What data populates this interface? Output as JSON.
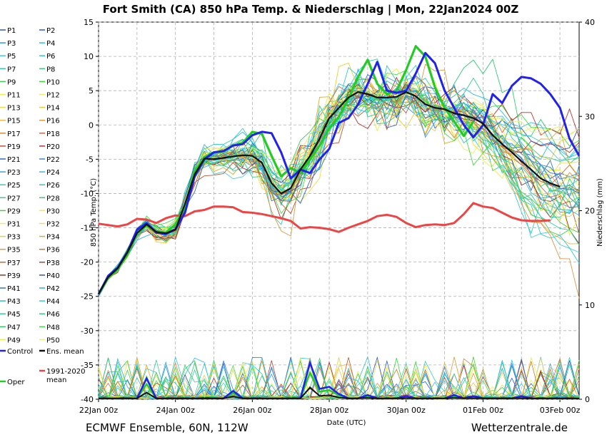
{
  "title": "Fort Smith  (CA)  850 hPa Temp. & Niederschlag | Mon, 22Jan2024 00Z",
  "footer_left": "ECMWF Ensemble, 60N, 112W",
  "footer_right": "Wetterzentrale.de",
  "colors": {
    "control": "#2222ee",
    "oper": "#22cc22",
    "mean": "#111111",
    "climate": "#ee4444",
    "grid": "#b0b0b0"
  },
  "chart_data": {
    "type": "line",
    "xlabel": "Date (UTC)",
    "ylabel": "850 hPa Temp. (°C)",
    "ylabel_right": "Niederschlag (mm)",
    "ylim": [
      -40,
      15
    ],
    "ylim_right": [
      0,
      40
    ],
    "yticks": [
      "15",
      "10",
      "5",
      "0",
      "-5",
      "-10",
      "-15",
      "-20",
      "-25",
      "-30",
      "-35",
      "-40"
    ],
    "yticks_right": [
      "40",
      "30",
      "20",
      "10",
      "0"
    ],
    "xticks": [
      "22Jan 00z",
      "24Jan 00z",
      "26Jan 00z",
      "28Jan 00z",
      "30Jan 00z",
      "01Feb 00z",
      "03Feb 00z"
    ],
    "x_days": 12.5,
    "grid": true,
    "legend": [
      {
        "label": "P1",
        "color": "#3355cc"
      },
      {
        "label": "P2",
        "color": "#2255ff"
      },
      {
        "label": "P3",
        "color": "#3399dd"
      },
      {
        "label": "P4",
        "color": "#33bbee"
      },
      {
        "label": "P5",
        "color": "#44ccdd"
      },
      {
        "label": "P6",
        "color": "#33cccc"
      },
      {
        "label": "P7",
        "color": "#33ccaa"
      },
      {
        "label": "P8",
        "color": "#33cc88"
      },
      {
        "label": "P9",
        "color": "#44cc55"
      },
      {
        "label": "P10",
        "color": "#33dd33"
      },
      {
        "label": "P11",
        "color": "#eeee44"
      },
      {
        "label": "P12",
        "color": "#eeee66"
      },
      {
        "label": "P13",
        "color": "#eedd44"
      },
      {
        "label": "P14",
        "color": "#eecc33"
      },
      {
        "label": "P15",
        "color": "#eebb44"
      },
      {
        "label": "P16",
        "color": "#dd9933"
      },
      {
        "label": "P17",
        "color": "#dd8844"
      },
      {
        "label": "P18",
        "color": "#cc6644"
      },
      {
        "label": "P19",
        "color": "#bb5533"
      },
      {
        "label": "P20",
        "color": "#bb3333"
      },
      {
        "label": "P21",
        "color": "#3366cc"
      },
      {
        "label": "P22",
        "color": "#3388dd"
      },
      {
        "label": "P23",
        "color": "#33aadd"
      },
      {
        "label": "P24",
        "color": "#33bbee"
      },
      {
        "label": "P25",
        "color": "#33cccc"
      },
      {
        "label": "P26",
        "color": "#33ccbb"
      },
      {
        "label": "P27",
        "color": "#33cc99"
      },
      {
        "label": "P28",
        "color": "#33cc77"
      },
      {
        "label": "P29",
        "color": "#44cc44"
      },
      {
        "label": "P30",
        "color": "#eeee33"
      },
      {
        "label": "P31",
        "color": "#eeee55"
      },
      {
        "label": "P32",
        "color": "#eedd66"
      },
      {
        "label": "P33",
        "color": "#eecc44"
      },
      {
        "label": "P34",
        "color": "#ddaa33"
      },
      {
        "label": "P35",
        "color": "#dd9944"
      },
      {
        "label": "P36",
        "color": "#cc7733"
      },
      {
        "label": "P37",
        "color": "#cc6633"
      },
      {
        "label": "P38",
        "color": "#aa4433"
      },
      {
        "label": "P39",
        "color": "#993322"
      },
      {
        "label": "P40",
        "color": "#3355bb"
      },
      {
        "label": "P41",
        "color": "#3377cc"
      },
      {
        "label": "P42",
        "color": "#33aaee"
      },
      {
        "label": "P43",
        "color": "#33bbcc"
      },
      {
        "label": "P44",
        "color": "#33ccdd"
      },
      {
        "label": "P45",
        "color": "#33ccaa"
      },
      {
        "label": "P46",
        "color": "#33cc88"
      },
      {
        "label": "P47",
        "color": "#33cc66"
      },
      {
        "label": "P48",
        "color": "#44dd44"
      },
      {
        "label": "P49",
        "color": "#eeee44"
      },
      {
        "label": "P50",
        "color": "#eeee88"
      },
      {
        "label": "Control",
        "color": "#2222ee"
      },
      {
        "label": "Ens. mean",
        "color": "#111111"
      },
      {
        "label": "1991-2020\nmean",
        "color": "#ee4444"
      },
      {
        "label": "Oper",
        "color": "#22cc22"
      }
    ],
    "series": {
      "control": [
        [
          0,
          -24.7
        ],
        [
          0.25,
          -22
        ],
        [
          0.5,
          -20.8
        ],
        [
          0.75,
          -18.5
        ],
        [
          1,
          -15.3
        ],
        [
          1.25,
          -14.3
        ],
        [
          1.5,
          -15.7
        ],
        [
          1.75,
          -15.9
        ],
        [
          2,
          -15.2
        ],
        [
          2.25,
          -12.8
        ],
        [
          2.5,
          -7.5
        ],
        [
          2.75,
          -5
        ],
        [
          3,
          -4
        ],
        [
          3.25,
          -3.8
        ],
        [
          3.5,
          -3
        ],
        [
          3.75,
          -2.8
        ],
        [
          4,
          -1.5
        ],
        [
          4.25,
          -1
        ],
        [
          4.5,
          -1.2
        ],
        [
          4.75,
          -4
        ],
        [
          5,
          -7.8
        ],
        [
          5.25,
          -6.5
        ],
        [
          5.5,
          -7
        ],
        [
          5.75,
          -5
        ],
        [
          6,
          -3.5
        ],
        [
          6.25,
          0.3
        ],
        [
          6.5,
          1
        ],
        [
          6.75,
          3
        ],
        [
          7,
          6
        ],
        [
          7.25,
          9.2
        ],
        [
          7.5,
          5
        ],
        [
          7.75,
          4.7
        ],
        [
          8,
          5
        ],
        [
          8.25,
          7.5
        ],
        [
          8.5,
          10.5
        ],
        [
          8.75,
          9
        ],
        [
          9,
          5
        ],
        [
          9.25,
          2.5
        ],
        [
          9.5,
          0
        ],
        [
          9.75,
          -1.8
        ],
        [
          10,
          0
        ],
        [
          10.25,
          4.5
        ],
        [
          10.5,
          3.2
        ],
        [
          10.75,
          5.7
        ],
        [
          11,
          7
        ],
        [
          11.25,
          6.8
        ],
        [
          11.5,
          6
        ],
        [
          11.75,
          4.5
        ],
        [
          12,
          2.5
        ],
        [
          12.25,
          -2
        ],
        [
          12.5,
          -4.5
        ]
      ],
      "oper": [
        [
          0,
          -24.8
        ],
        [
          0.25,
          -22.3
        ],
        [
          0.5,
          -21
        ],
        [
          0.75,
          -19
        ],
        [
          1,
          -15.7
        ],
        [
          1.25,
          -14.7
        ],
        [
          1.5,
          -15.5
        ],
        [
          1.75,
          -15.7
        ],
        [
          2,
          -14.5
        ],
        [
          2.25,
          -12
        ],
        [
          2.5,
          -6.8
        ],
        [
          2.75,
          -4.7
        ],
        [
          3,
          -4
        ],
        [
          3.25,
          -3.9
        ],
        [
          3.5,
          -3
        ],
        [
          3.75,
          -2.6
        ],
        [
          4,
          -1
        ],
        [
          4.25,
          -1.3
        ],
        [
          4.5,
          -4.5
        ],
        [
          4.75,
          -7.5
        ],
        [
          5,
          -6.3
        ],
        [
          5.25,
          -7
        ],
        [
          5.5,
          -5
        ],
        [
          5.75,
          -3
        ],
        [
          6,
          -0.5
        ],
        [
          6.25,
          1.2
        ],
        [
          6.5,
          3.8
        ],
        [
          6.75,
          7
        ],
        [
          7,
          9.5
        ],
        [
          7.25,
          6
        ],
        [
          7.5,
          4.5
        ],
        [
          7.75,
          5
        ],
        [
          8,
          8
        ],
        [
          8.25,
          11.5
        ],
        [
          8.5,
          10
        ],
        [
          8.75,
          5.5
        ],
        [
          9,
          2.5
        ],
        [
          9.25,
          0.5
        ],
        [
          9.5,
          -1.6
        ],
        [
          9.75,
          0.5
        ]
      ],
      "mean": [
        [
          0,
          -24.6
        ],
        [
          0.25,
          -22.2
        ],
        [
          0.5,
          -20.9
        ],
        [
          0.75,
          -18.6
        ],
        [
          1,
          -15.8
        ],
        [
          1.25,
          -14.5
        ],
        [
          1.5,
          -15.6
        ],
        [
          1.75,
          -15.8
        ],
        [
          2,
          -15.3
        ],
        [
          2.25,
          -11.5
        ],
        [
          2.5,
          -7.2
        ],
        [
          2.75,
          -4.9
        ],
        [
          3,
          -5
        ],
        [
          3.25,
          -4.8
        ],
        [
          3.5,
          -4.6
        ],
        [
          3.75,
          -4.4
        ],
        [
          4,
          -4.5
        ],
        [
          4.25,
          -5.5
        ],
        [
          4.5,
          -8.5
        ],
        [
          4.75,
          -10
        ],
        [
          5,
          -9.2
        ],
        [
          5.25,
          -6.5
        ],
        [
          5.5,
          -4.5
        ],
        [
          5.75,
          -2
        ],
        [
          6,
          1
        ],
        [
          6.25,
          2.5
        ],
        [
          6.5,
          4
        ],
        [
          6.75,
          4.8
        ],
        [
          7,
          4.5
        ],
        [
          7.25,
          4
        ],
        [
          7.5,
          4
        ],
        [
          7.75,
          4.1
        ],
        [
          8,
          4.8
        ],
        [
          8.25,
          4.2
        ],
        [
          8.5,
          3
        ],
        [
          8.75,
          2.5
        ],
        [
          9,
          2.3
        ],
        [
          9.25,
          1.7
        ],
        [
          9.5,
          1.4
        ],
        [
          9.75,
          1
        ],
        [
          10,
          0.2
        ],
        [
          10.25,
          -1.5
        ],
        [
          10.5,
          -2.8
        ],
        [
          10.75,
          -4
        ],
        [
          11,
          -5.3
        ],
        [
          11.25,
          -6.5
        ],
        [
          11.5,
          -7.8
        ],
        [
          11.75,
          -8.5
        ],
        [
          12,
          -9
        ]
      ],
      "climate": [
        [
          0,
          -14.4
        ],
        [
          0.5,
          -14.8
        ],
        [
          0.75,
          -14.5
        ],
        [
          1,
          -13.7
        ],
        [
          1.25,
          -13.8
        ],
        [
          1.5,
          -14.3
        ],
        [
          1.75,
          -13.6
        ],
        [
          2,
          -13.2
        ],
        [
          2.25,
          -13.3
        ],
        [
          2.5,
          -12.6
        ],
        [
          2.75,
          -12.4
        ],
        [
          3,
          -11.9
        ],
        [
          3.25,
          -11.9
        ],
        [
          3.5,
          -12
        ],
        [
          3.75,
          -12.7
        ],
        [
          4,
          -12.8
        ],
        [
          4.25,
          -13
        ],
        [
          4.5,
          -13.3
        ],
        [
          4.75,
          -13.6
        ],
        [
          5,
          -14
        ],
        [
          5.25,
          -15.1
        ],
        [
          5.5,
          -14.9
        ],
        [
          5.75,
          -15
        ],
        [
          6,
          -15.2
        ],
        [
          6.25,
          -15.6
        ],
        [
          6.5,
          -15
        ],
        [
          6.75,
          -14.5
        ],
        [
          7,
          -14
        ],
        [
          7.25,
          -13.3
        ],
        [
          7.5,
          -13.1
        ],
        [
          7.75,
          -13.4
        ],
        [
          8,
          -14.3
        ],
        [
          8.25,
          -14.9
        ],
        [
          8.5,
          -14.6
        ],
        [
          8.75,
          -14.5
        ],
        [
          9,
          -14.6
        ],
        [
          9.25,
          -14.3
        ],
        [
          9.5,
          -13
        ],
        [
          9.75,
          -11.4
        ],
        [
          10,
          -11.9
        ],
        [
          10.25,
          -12.1
        ],
        [
          10.5,
          -12.8
        ],
        [
          10.75,
          -13.5
        ],
        [
          11,
          -13.9
        ],
        [
          11.25,
          -14
        ],
        [
          11.5,
          -14
        ],
        [
          11.75,
          -13.9
        ]
      ]
    },
    "precip_spikes": [
      [
        1.25,
        2
      ],
      [
        3.5,
        0.8
      ],
      [
        5.5,
        3.5
      ],
      [
        5.75,
        1
      ],
      [
        6,
        1.2
      ],
      [
        6.25,
        0.5
      ],
      [
        7,
        0.4
      ],
      [
        8,
        0.3
      ],
      [
        9.25,
        0.4
      ],
      [
        9.75,
        0.3
      ],
      [
        11,
        0.3
      ]
    ]
  }
}
